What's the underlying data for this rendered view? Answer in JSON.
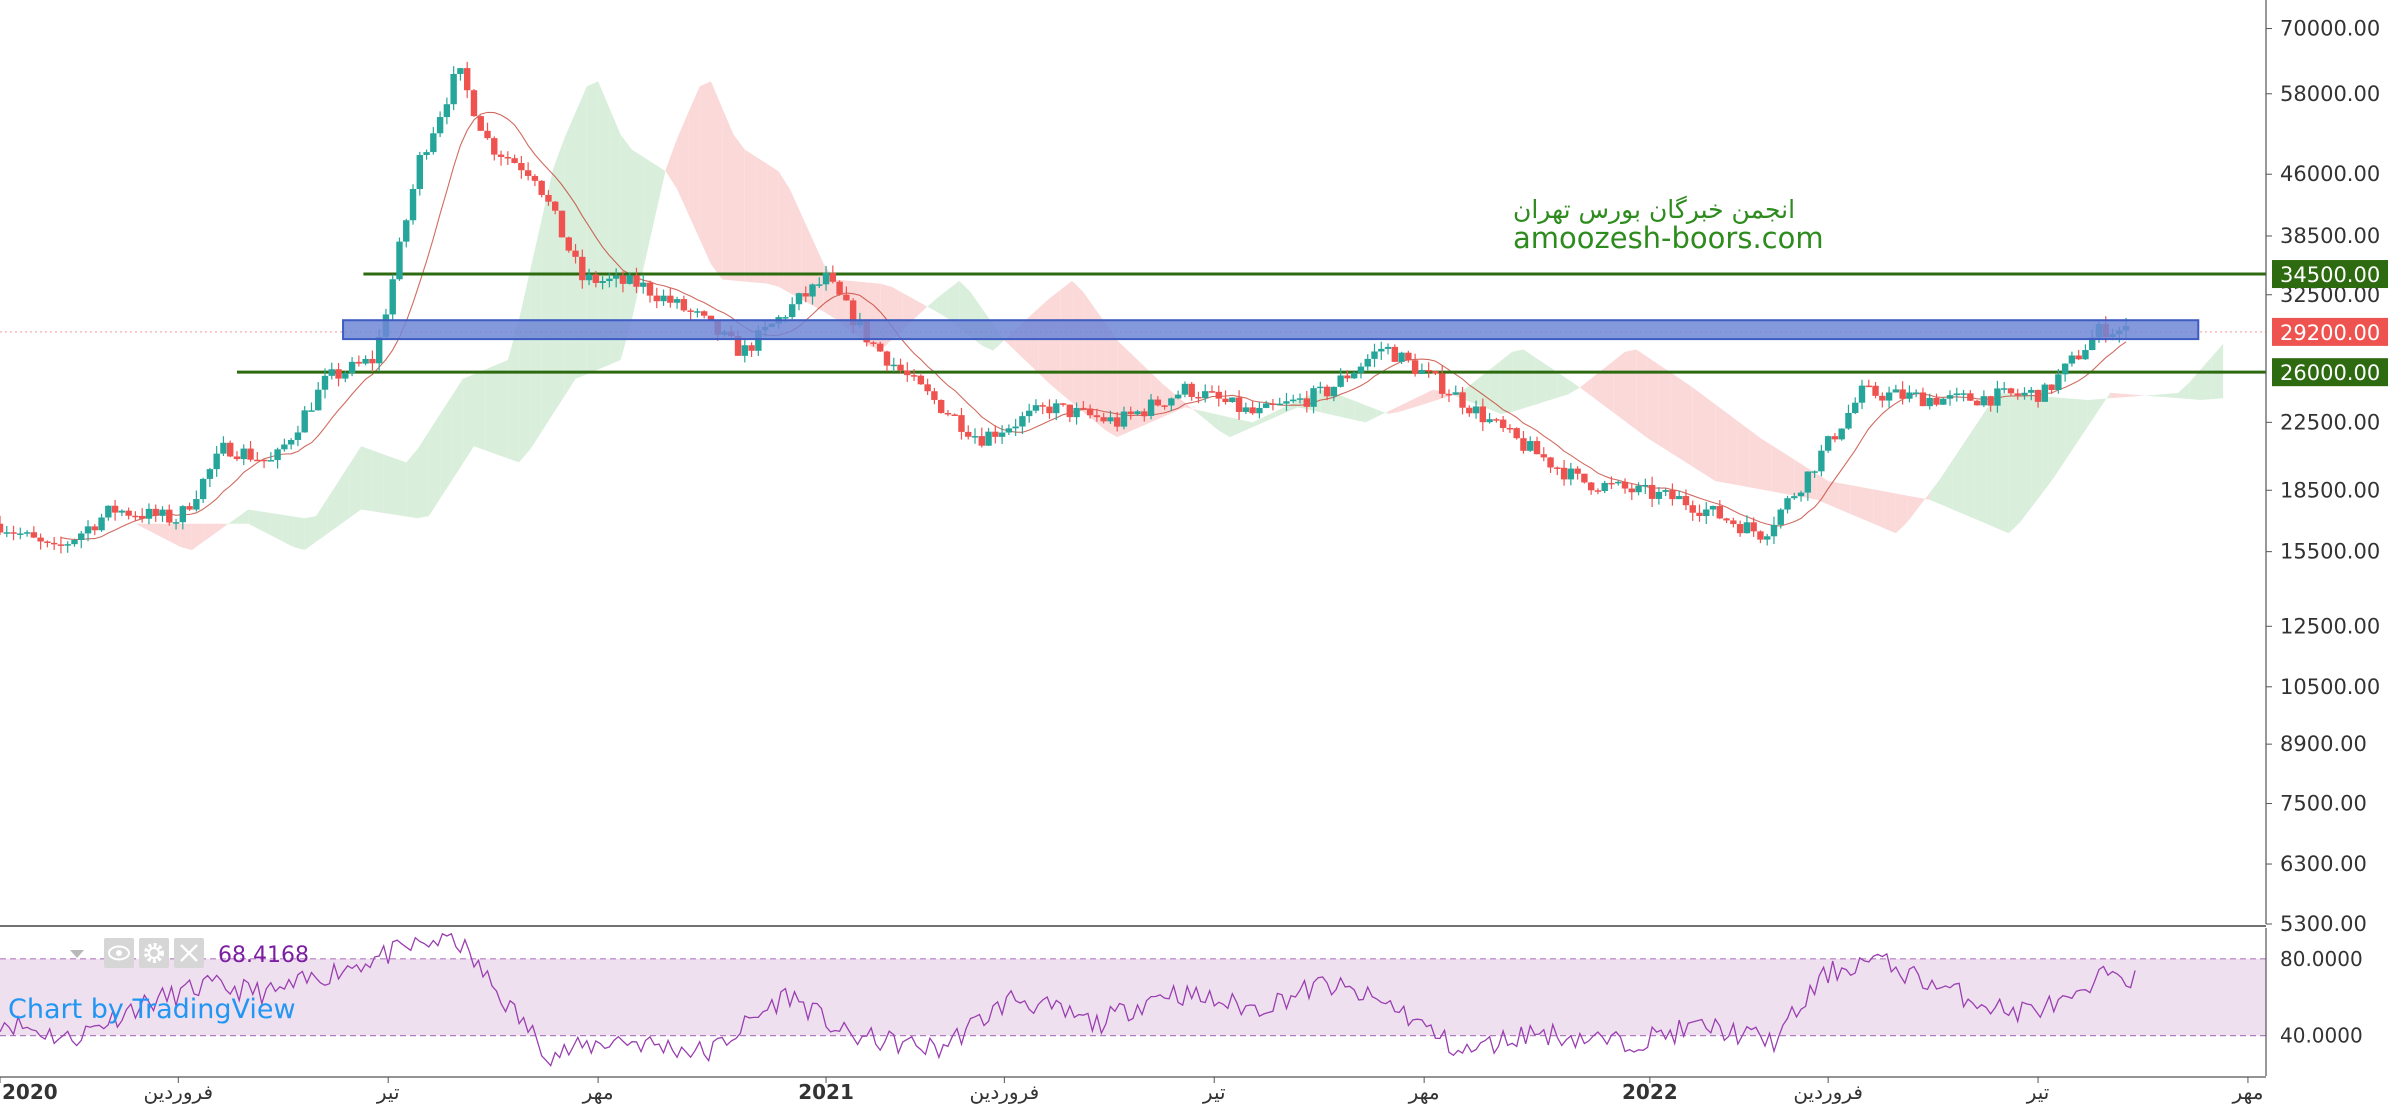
{
  "colors": {
    "up": "#26a69a",
    "down": "#ef5350",
    "level_green": "#2e6b10",
    "zone_blue": "#6f86d6",
    "zone_border": "#3d5bc1",
    "rsi_fill": "#efe0f0",
    "rsi_line": "#9a3fb0",
    "cloud_green": "#d9efdc",
    "cloud_red": "#fbd9d9",
    "price_badge": "#ef5350",
    "watermark_text": "#2e8b1e",
    "tv_blue": "#2196f3"
  },
  "watermark": {
    "line1": "انجمن خبرگان بورس تهران",
    "line2": "amoozesh-boors.com"
  },
  "branding": {
    "text": "Chart by TradingView"
  },
  "rsi": {
    "value_label": "68.4168",
    "upper_label": "80.0000",
    "lower_label": "40.0000",
    "upper": 80,
    "lower": 40,
    "ymin": 20,
    "ymax": 95
  },
  "price_axis": {
    "ticks": [
      "70000.00",
      "58000.00",
      "46000.00",
      "38500.00",
      "32500.00",
      "22500.00",
      "18500.00",
      "15500.00",
      "12500.00",
      "10500.00",
      "8900.00",
      "7500.00",
      "6300.00",
      "5300.00"
    ]
  },
  "time_axis": {
    "labels": [
      "2020",
      "فروردین",
      "تیر",
      "مهر",
      "2021",
      "فروردین",
      "تیر",
      "مهر",
      "2022",
      "فروردین",
      "تیر",
      "مهر"
    ]
  },
  "icons": [
    "chevron-down-icon",
    "eye-icon",
    "gear-icon",
    "close-icon"
  ],
  "chart_data": {
    "type": "candlestick",
    "scale": "log",
    "ylim": [
      5300,
      76000
    ],
    "x_range": [
      "2020-01-01",
      "2022-10-01"
    ],
    "x_ticks": [
      {
        "label": "2020",
        "date": "2020-01-01"
      },
      {
        "label": "فروردین",
        "date": "2020-03-20"
      },
      {
        "label": "تیر",
        "date": "2020-06-21"
      },
      {
        "label": "مهر",
        "date": "2020-09-22"
      },
      {
        "label": "2021",
        "date": "2021-01-01"
      },
      {
        "label": "فروردین",
        "date": "2021-03-21"
      },
      {
        "label": "تیر",
        "date": "2021-06-22"
      },
      {
        "label": "مهر",
        "date": "2021-09-23"
      },
      {
        "label": "2022",
        "date": "2022-01-01"
      },
      {
        "label": "فروردین",
        "date": "2022-03-21"
      },
      {
        "label": "تیر",
        "date": "2022-06-22"
      },
      {
        "label": "مهر",
        "date": "2022-09-23"
      }
    ],
    "levels": [
      {
        "value": 34500,
        "label": "34500.00",
        "from": "2020-06-10",
        "kind": "resistance"
      },
      {
        "value": 26000,
        "label": "26000.00",
        "from": "2020-04-15",
        "kind": "support"
      }
    ],
    "zone": {
      "from": "2020-06-01",
      "to": "2022-09-01",
      "low": 28600,
      "high": 30200
    },
    "last_price": {
      "value": 29200,
      "label": "29200.00"
    },
    "price_path": [
      {
        "date": "2020-01-01",
        "price": 16800
      },
      {
        "date": "2020-01-25",
        "price": 15500
      },
      {
        "date": "2020-02-20",
        "price": 17500
      },
      {
        "date": "2020-03-20",
        "price": 17000
      },
      {
        "date": "2020-04-10",
        "price": 21000
      },
      {
        "date": "2020-05-01",
        "price": 20000
      },
      {
        "date": "2020-05-25",
        "price": 25500
      },
      {
        "date": "2020-06-15",
        "price": 27000
      },
      {
        "date": "2020-07-05",
        "price": 48000
      },
      {
        "date": "2020-07-22",
        "price": 62000
      },
      {
        "date": "2020-08-05",
        "price": 50000
      },
      {
        "date": "2020-08-25",
        "price": 46000
      },
      {
        "date": "2020-09-15",
        "price": 34000
      },
      {
        "date": "2020-10-10",
        "price": 33500
      },
      {
        "date": "2020-11-05",
        "price": 30500
      },
      {
        "date": "2020-11-25",
        "price": 27500
      },
      {
        "date": "2020-12-20",
        "price": 32000
      },
      {
        "date": "2021-01-01",
        "price": 34000
      },
      {
        "date": "2021-01-20",
        "price": 28500
      },
      {
        "date": "2021-02-10",
        "price": 25000
      },
      {
        "date": "2021-03-10",
        "price": 21500
      },
      {
        "date": "2021-04-10",
        "price": 23500
      },
      {
        "date": "2021-05-10",
        "price": 22500
      },
      {
        "date": "2021-06-10",
        "price": 24800
      },
      {
        "date": "2021-07-10",
        "price": 23000
      },
      {
        "date": "2021-08-10",
        "price": 24500
      },
      {
        "date": "2021-09-05",
        "price": 28000
      },
      {
        "date": "2021-10-01",
        "price": 25000
      },
      {
        "date": "2021-11-01",
        "price": 21500
      },
      {
        "date": "2021-12-01",
        "price": 19000
      },
      {
        "date": "2022-01-15",
        "price": 18000
      },
      {
        "date": "2022-02-20",
        "price": 16300
      },
      {
        "date": "2022-03-10",
        "price": 19000
      },
      {
        "date": "2022-04-05",
        "price": 24500
      },
      {
        "date": "2022-05-15",
        "price": 24000
      },
      {
        "date": "2022-06-25",
        "price": 24500
      },
      {
        "date": "2022-07-20",
        "price": 29500
      },
      {
        "date": "2022-08-01",
        "price": 29200
      }
    ],
    "rsi_path": [
      {
        "date": "2020-01-01",
        "v": 48
      },
      {
        "date": "2020-02-01",
        "v": 38
      },
      {
        "date": "2020-03-01",
        "v": 55
      },
      {
        "date": "2020-04-01",
        "v": 66
      },
      {
        "date": "2020-05-01",
        "v": 62
      },
      {
        "date": "2020-06-01",
        "v": 75
      },
      {
        "date": "2020-07-01",
        "v": 86
      },
      {
        "date": "2020-07-20",
        "v": 92
      },
      {
        "date": "2020-08-10",
        "v": 60
      },
      {
        "date": "2020-09-01",
        "v": 30
      },
      {
        "date": "2020-10-01",
        "v": 38
      },
      {
        "date": "2020-11-10",
        "v": 31
      },
      {
        "date": "2020-12-15",
        "v": 62
      },
      {
        "date": "2021-01-10",
        "v": 40
      },
      {
        "date": "2021-02-20",
        "v": 33
      },
      {
        "date": "2021-03-25",
        "v": 60
      },
      {
        "date": "2021-05-01",
        "v": 46
      },
      {
        "date": "2021-06-01",
        "v": 63
      },
      {
        "date": "2021-07-10",
        "v": 54
      },
      {
        "date": "2021-08-10",
        "v": 67
      },
      {
        "date": "2021-09-10",
        "v": 55
      },
      {
        "date": "2021-10-10",
        "v": 31
      },
      {
        "date": "2021-11-10",
        "v": 42
      },
      {
        "date": "2021-12-20",
        "v": 36
      },
      {
        "date": "2022-01-25",
        "v": 45
      },
      {
        "date": "2022-02-25",
        "v": 37
      },
      {
        "date": "2022-03-20",
        "v": 72
      },
      {
        "date": "2022-04-10",
        "v": 80
      },
      {
        "date": "2022-05-10",
        "v": 65
      },
      {
        "date": "2022-06-10",
        "v": 52
      },
      {
        "date": "2022-07-10",
        "v": 58
      },
      {
        "date": "2022-07-25",
        "v": 76
      },
      {
        "date": "2022-08-05",
        "v": 68
      }
    ]
  }
}
